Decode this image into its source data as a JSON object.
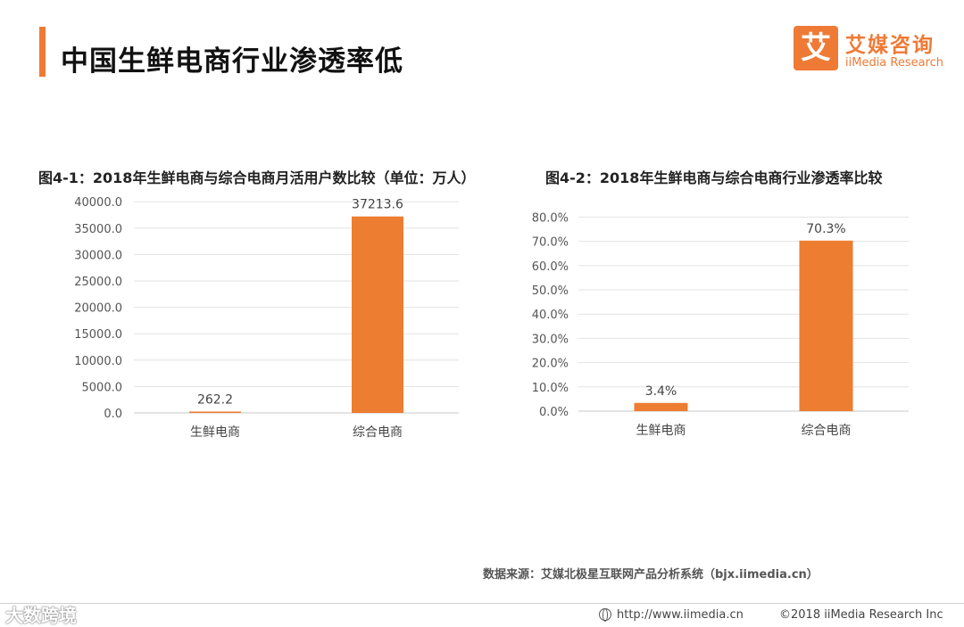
{
  "page": {
    "title": "中国生鲜电商行业渗透率低",
    "accent_color": "#ef7a35",
    "bar_color": "#ed7d31"
  },
  "logo": {
    "mark": "艾",
    "name_cn": "艾媒咨询",
    "name_en": "iiMedia Research",
    "icon": "iimedia-logo-icon"
  },
  "chart_data": [
    {
      "type": "bar",
      "title": "图4-1：2018年生鲜电商与综合电商月活用户数比较（单位：万人）",
      "categories": [
        "生鲜电商",
        "综合电商"
      ],
      "values": [
        262.2,
        37213.6
      ],
      "value_labels": [
        "262.2",
        "37213.6"
      ],
      "ylim": [
        0,
        40000
      ],
      "yticks": [
        "0.0",
        "5000.0",
        "10000.0",
        "15000.0",
        "20000.0",
        "25000.0",
        "30000.0",
        "35000.0",
        "40000.0"
      ],
      "xlabel": "",
      "ylabel": "",
      "grid": true,
      "legend": "none"
    },
    {
      "type": "bar",
      "title": "图4-2：2018年生鲜电商与综合电商行业渗透率比较",
      "categories": [
        "生鲜电商",
        "综合电商"
      ],
      "values": [
        3.4,
        70.3
      ],
      "value_labels": [
        "3.4%",
        "70.3%"
      ],
      "ylim": [
        0,
        80
      ],
      "yticks": [
        "0.0%",
        "10.0%",
        "20.0%",
        "30.0%",
        "40.0%",
        "50.0%",
        "60.0%",
        "70.0%",
        "80.0%"
      ],
      "xlabel": "",
      "ylabel": "",
      "grid": true,
      "legend": "none"
    }
  ],
  "source": "数据来源：艾媒北极星互联网产品分析系统（bjx.iimedia.cn）",
  "footer": {
    "url": "http://www.iimedia.cn",
    "url_icon": "globe-icon",
    "copyright": "©2018  iiMedia Research  Inc",
    "watermark": "大数跨境"
  }
}
